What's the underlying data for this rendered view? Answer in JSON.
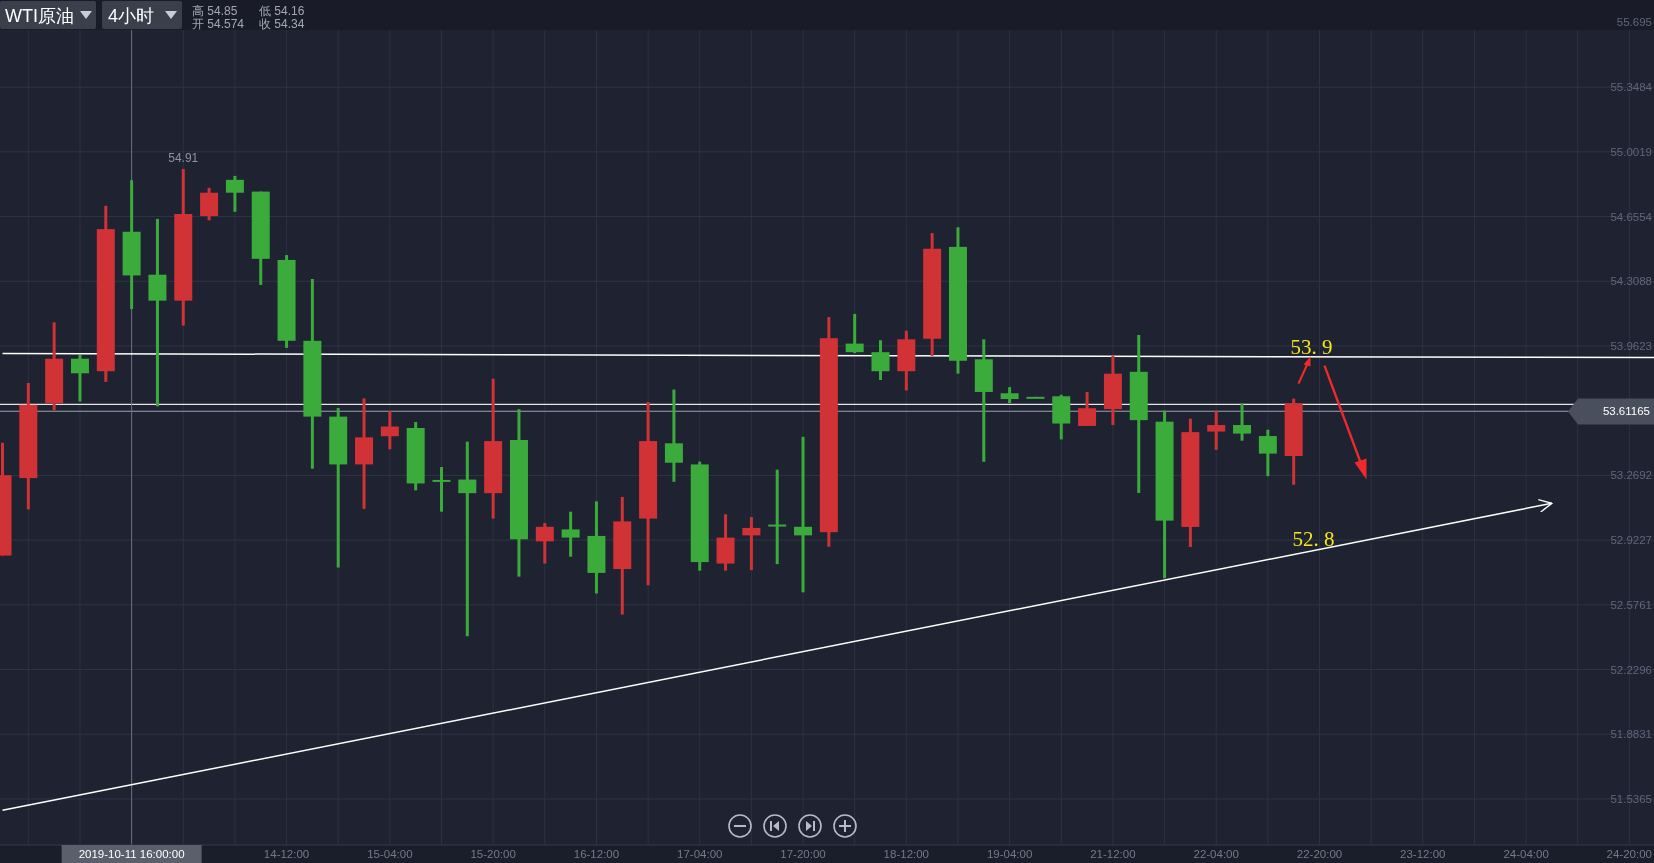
{
  "chart_data": {
    "type": "candlestick",
    "title": "WTI原油",
    "subtitle": "4小时",
    "categories": [
      null,
      null,
      null,
      null,
      null,
      "2019-10-11 16:00:00",
      null,
      null,
      null,
      null,
      null,
      "14-12:00",
      null,
      null,
      null,
      "15-04:00",
      null,
      null,
      null,
      "15-20:00",
      null,
      null,
      null,
      "16-12:00",
      null,
      null,
      null,
      "17-04:00",
      null,
      null,
      null,
      "17-20:00",
      null,
      null,
      null,
      "18-12:00",
      null,
      null,
      null,
      "19-04:00",
      null,
      null,
      null,
      "21-12:00",
      null,
      null,
      null,
      "22-04:00",
      null,
      null,
      null,
      "22-20:00",
      null,
      null,
      null,
      "23-12:00",
      null,
      null,
      null,
      "24-04:00",
      null,
      null,
      null,
      "24-20:00",
      null
    ],
    "ohlc": [
      [
        52.84,
        53.444,
        52.84,
        53.27
      ],
      [
        53.255,
        53.764,
        53.087,
        53.647
      ],
      [
        53.656,
        54.089,
        53.618,
        53.894
      ],
      [
        53.894,
        53.915,
        53.665,
        53.816
      ],
      [
        53.827,
        54.713,
        53.77,
        54.588
      ],
      [
        54.574,
        54.85,
        54.16,
        54.34
      ],
      [
        54.344,
        54.643,
        53.639,
        54.205
      ],
      [
        54.205,
        54.91,
        54.071,
        54.669
      ],
      [
        54.658,
        54.809,
        54.635,
        54.783
      ],
      [
        54.852,
        54.873,
        54.681,
        54.783
      ],
      [
        54.789,
        54.789,
        54.289,
        54.429
      ],
      [
        54.423,
        54.449,
        53.952,
        53.99
      ],
      [
        53.99,
        54.321,
        53.305,
        53.584
      ],
      [
        53.584,
        53.63,
        52.776,
        53.328
      ],
      [
        53.328,
        53.682,
        53.09,
        53.473
      ],
      [
        53.479,
        53.613,
        53.409,
        53.531
      ],
      [
        53.523,
        53.555,
        53.189,
        53.226
      ],
      [
        53.245,
        53.314,
        53.075,
        53.238
      ],
      [
        53.247,
        53.45,
        52.408,
        53.174
      ],
      [
        53.174,
        53.787,
        53.038,
        53.453
      ],
      [
        53.459,
        53.624,
        52.727,
        52.927
      ],
      [
        52.916,
        53.014,
        52.797,
        52.994
      ],
      [
        52.98,
        53.075,
        52.834,
        52.936
      ],
      [
        52.945,
        53.13,
        52.637,
        52.747
      ],
      [
        52.768,
        53.154,
        52.524,
        53.023
      ],
      [
        53.038,
        53.662,
        52.681,
        53.453
      ],
      [
        53.441,
        53.729,
        53.235,
        53.337
      ],
      [
        53.328,
        53.343,
        52.759,
        52.805
      ],
      [
        52.797,
        53.061,
        52.759,
        52.936
      ],
      [
        52.948,
        53.046,
        52.762,
        52.988
      ],
      [
        53.006,
        53.3,
        52.794,
        53.0
      ],
      [
        52.994,
        53.476,
        52.643,
        52.948
      ],
      [
        52.965,
        54.117,
        52.887,
        54.004
      ],
      [
        53.975,
        54.134,
        53.924,
        53.929
      ],
      [
        53.929,
        53.993,
        53.78,
        53.827
      ],
      [
        53.827,
        54.044,
        53.724,
        53.998
      ],
      [
        54.001,
        54.567,
        53.909,
        54.483
      ],
      [
        54.493,
        54.598,
        53.814,
        53.883
      ],
      [
        53.891,
        53.998,
        53.342,
        53.716
      ],
      [
        53.709,
        53.742,
        53.657,
        53.678
      ],
      [
        53.69,
        53.69,
        53.686,
        53.686
      ],
      [
        53.693,
        53.701,
        53.462,
        53.547
      ],
      [
        53.534,
        53.716,
        53.534,
        53.629
      ],
      [
        53.624,
        53.911,
        53.539,
        53.814
      ],
      [
        53.824,
        54.021,
        53.175,
        53.565
      ],
      [
        53.557,
        53.616,
        52.719,
        53.027
      ],
      [
        52.993,
        53.573,
        52.886,
        53.501
      ],
      [
        53.504,
        53.616,
        53.406,
        53.539
      ],
      [
        53.539,
        53.655,
        53.455,
        53.493
      ],
      [
        53.48,
        53.514,
        53.265,
        53.386
      ],
      [
        53.373,
        53.68,
        53.219,
        53.655
      ],
      null,
      null,
      null,
      null,
      null,
      null,
      null,
      null,
      null,
      null,
      null,
      null,
      null,
      null
    ],
    "colors": [
      "#d13236",
      "#d13236",
      "#d13236",
      "#3bab3c",
      "#d13236",
      "#3bab3c",
      "#3bab3c",
      "#d13236",
      "#d13236",
      "#3bab3c",
      "#3bab3c",
      "#3bab3c",
      "#3bab3c",
      "#3bab3c",
      "#d13236",
      "#d13236",
      "#3bab3c",
      "#3bab3c",
      "#3bab3c",
      "#d13236",
      "#3bab3c",
      "#d13236",
      "#3bab3c",
      "#3bab3c",
      "#d13236",
      "#d13236",
      "#3bab3c",
      "#3bab3c",
      "#d13236",
      "#d13236",
      "#3bab3c",
      "#3bab3c",
      "#d13236",
      "#3bab3c",
      "#3bab3c",
      "#d13236",
      "#d13236",
      "#3bab3c",
      "#3bab3c",
      "#3bab3c",
      "#3bab3c",
      "#3bab3c",
      "#d13236",
      "#d13236",
      "#3bab3c",
      "#3bab3c",
      "#d13236",
      "#d13236",
      "#3bab3c",
      "#3bab3c",
      "#d13236",
      null,
      null,
      null,
      null,
      null,
      null,
      null,
      null,
      null,
      null,
      null,
      null,
      null,
      null
    ],
    "series": [
      {
        "type": "line",
        "color": "#ffffff",
        "values": [
          53.922,
          null,
          null,
          null,
          null,
          null,
          null,
          null,
          null,
          null,
          null,
          null,
          null,
          null,
          null,
          null,
          null,
          null,
          null,
          null,
          null,
          null,
          null,
          null,
          null,
          null,
          null,
          null,
          null,
          null,
          null,
          null,
          null,
          null,
          null,
          null,
          null,
          null,
          null,
          null,
          null,
          null,
          null,
          null,
          null,
          null,
          null,
          null,
          null,
          null,
          null,
          null,
          null,
          null,
          null,
          null,
          null,
          null,
          null,
          null,
          null,
          null,
          null,
          null,
          53.9
        ]
      },
      {
        "type": "line",
        "color": "#ffffff",
        "values": [
          51.476,
          null,
          null,
          null,
          null,
          null,
          null,
          null,
          null,
          null,
          null,
          null,
          null,
          null,
          null,
          null,
          null,
          null,
          null,
          null,
          null,
          null,
          null,
          null,
          null,
          null,
          null,
          null,
          null,
          null,
          null,
          null,
          null,
          null,
          null,
          null,
          null,
          null,
          null,
          null,
          null,
          null,
          null,
          null,
          null,
          null,
          null,
          null,
          null,
          null,
          null,
          null,
          null,
          null,
          null,
          null,
          null,
          null,
          null,
          null,
          53.12,
          null,
          null,
          null,
          null
        ]
      }
    ],
    "ylim": [
      51.29,
      55.815
    ],
    "yticks": [
      55.695,
      55.3484,
      55.0019,
      54.6554,
      54.3088,
      53.9623,
      {
        "value": 53.6158,
        "label": null
      },
      53.2692,
      52.9227,
      52.5761,
      52.2296,
      51.8831,
      51.5365
    ],
    "grid": true,
    "ref_lines": [
      {
        "axis": "y",
        "value": 53.65,
        "color": "#e6e6e6"
      },
      {
        "axis": "y",
        "value": 53.61165,
        "label": "53.61165",
        "color": "#7c8190"
      },
      {
        "axis": "x",
        "value": "2019-10-11 16:00:00",
        "color": "#6b7080"
      }
    ],
    "annotations": [
      "高 54.85",
      "开 54.574",
      "低 54.16",
      "收 54.34",
      "54.91",
      {
        "text": "53. 9",
        "x": "22-20:00",
        "y": 53.9
      },
      "52. 8"
    ]
  }
}
